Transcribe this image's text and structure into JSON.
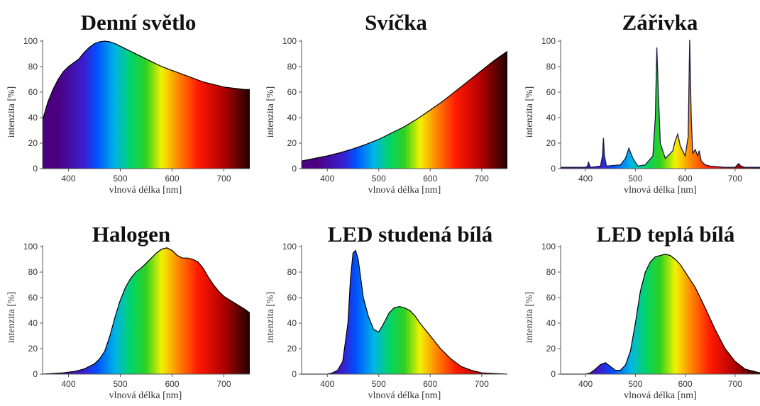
{
  "chart_data": [
    {
      "type": "area",
      "title": "Denní světlo",
      "xlabel": "vlnová délka [nm]",
      "ylabel": "intenzita [%]",
      "xlim": [
        350,
        750
      ],
      "ylim": [
        0,
        100
      ],
      "xticks": [
        400,
        500,
        600,
        700
      ],
      "yticks": [
        0,
        20,
        40,
        60,
        80,
        100
      ],
      "x": [
        350,
        360,
        370,
        380,
        390,
        400,
        410,
        420,
        430,
        440,
        450,
        460,
        470,
        480,
        490,
        500,
        520,
        540,
        560,
        580,
        600,
        620,
        640,
        660,
        680,
        700,
        720,
        740,
        750
      ],
      "y": [
        38,
        52,
        62,
        70,
        76,
        80,
        83,
        86,
        91,
        95,
        98,
        99.5,
        100,
        99.5,
        98,
        96,
        92,
        88,
        84,
        80,
        77,
        74,
        71,
        68,
        66,
        64,
        63,
        62,
        62
      ]
    },
    {
      "type": "area",
      "title": "Svíčka",
      "xlabel": "vlnová délka [nm]",
      "ylabel": "intenzita [%]",
      "xlim": [
        350,
        750
      ],
      "ylim": [
        0,
        100
      ],
      "xticks": [
        400,
        500,
        600,
        700
      ],
      "yticks": [
        0,
        20,
        40,
        60,
        80,
        100
      ],
      "x": [
        350,
        375,
        400,
        425,
        450,
        475,
        500,
        525,
        550,
        575,
        600,
        625,
        650,
        675,
        700,
        725,
        750
      ],
      "y": [
        6,
        8,
        10,
        12.5,
        15.5,
        19,
        23,
        28,
        33,
        39,
        46,
        53,
        61,
        69,
        77,
        85,
        92
      ]
    },
    {
      "type": "line",
      "title": "Zářivka",
      "xlabel": "vlnová délka [nm]",
      "ylabel": "intenzita [%]",
      "xlim": [
        350,
        750
      ],
      "ylim": [
        0,
        100
      ],
      "xticks": [
        400,
        500,
        600,
        700
      ],
      "yticks": [
        0,
        20,
        40,
        60,
        80,
        100
      ],
      "x": [
        350,
        380,
        400,
        404,
        406,
        410,
        430,
        434,
        436,
        438,
        442,
        470,
        480,
        487,
        495,
        505,
        520,
        535,
        540,
        543,
        546,
        550,
        560,
        575,
        580,
        585,
        590,
        600,
        606,
        609,
        612,
        615,
        620,
        625,
        628,
        632,
        640,
        650,
        680,
        700,
        707,
        712,
        720,
        750
      ],
      "y": [
        1,
        1,
        1,
        2,
        5,
        1,
        2,
        10,
        24,
        10,
        2,
        3,
        8,
        16,
        8,
        2,
        3,
        10,
        40,
        95,
        60,
        20,
        8,
        14,
        22,
        27,
        18,
        10,
        25,
        101,
        40,
        12,
        15,
        10,
        14,
        6,
        3,
        2,
        1,
        1,
        4,
        2,
        1,
        1
      ]
    },
    {
      "type": "area",
      "title": "Halogen",
      "xlabel": "vlnová délka [nm]",
      "ylabel": "intenzita [%]",
      "xlim": [
        350,
        750
      ],
      "ylim": [
        0,
        100
      ],
      "xticks": [
        400,
        500,
        600,
        700
      ],
      "yticks": [
        0,
        20,
        40,
        60,
        80,
        100
      ],
      "x": [
        350,
        370,
        390,
        410,
        430,
        450,
        460,
        470,
        480,
        490,
        500,
        510,
        520,
        530,
        540,
        550,
        560,
        570,
        580,
        590,
        600,
        610,
        620,
        630,
        640,
        650,
        660,
        670,
        680,
        690,
        700,
        720,
        740,
        750
      ],
      "y": [
        0,
        0.5,
        1,
        2,
        4,
        8,
        12,
        18,
        30,
        45,
        58,
        68,
        75,
        80,
        83,
        87,
        91,
        95,
        98,
        99,
        97,
        93,
        91,
        91,
        90,
        88,
        83,
        76,
        70,
        65,
        61,
        56,
        51,
        48
      ]
    },
    {
      "type": "area",
      "title": "LED studená bílá",
      "xlabel": "vlnová délka [nm]",
      "ylabel": "intenzita [%]",
      "xlim": [
        350,
        750
      ],
      "ylim": [
        0,
        100
      ],
      "xticks": [
        400,
        500,
        600,
        700
      ],
      "yticks": [
        0,
        20,
        40,
        60,
        80,
        100
      ],
      "x": [
        350,
        400,
        410,
        420,
        430,
        440,
        445,
        450,
        455,
        460,
        465,
        470,
        480,
        490,
        500,
        510,
        520,
        530,
        540,
        550,
        560,
        570,
        580,
        600,
        620,
        640,
        660,
        680,
        700,
        750
      ],
      "y": [
        0,
        0,
        1,
        3,
        10,
        40,
        75,
        95,
        97,
        90,
        75,
        60,
        45,
        35,
        33,
        40,
        48,
        52,
        53,
        52,
        50,
        46,
        40,
        30,
        20,
        12,
        6,
        3,
        1,
        0
      ]
    },
    {
      "type": "area",
      "title": "LED teplá bílá",
      "xlabel": "vlnová délka [nm]",
      "ylabel": "intenzita [%]",
      "xlim": [
        350,
        750
      ],
      "ylim": [
        0,
        100
      ],
      "xticks": [
        400,
        500,
        600,
        700
      ],
      "yticks": [
        0,
        20,
        40,
        60,
        80,
        100
      ],
      "x": [
        350,
        400,
        410,
        420,
        430,
        440,
        450,
        460,
        470,
        480,
        490,
        500,
        510,
        520,
        530,
        540,
        550,
        560,
        570,
        580,
        590,
        600,
        610,
        620,
        640,
        660,
        680,
        700,
        720,
        750
      ],
      "y": [
        0,
        0,
        1,
        4,
        7.5,
        9,
        6,
        3,
        3,
        7,
        18,
        40,
        65,
        80,
        88,
        92,
        93,
        94,
        93,
        90,
        86,
        80,
        74,
        68,
        52,
        35,
        20,
        10,
        4,
        1
      ]
    }
  ],
  "colors": {
    "spectrum": [
      "#4b0082",
      "#3a1fd0",
      "#0050ff",
      "#00b4e6",
      "#00d46a",
      "#30d020",
      "#f2f200",
      "#ff8c00",
      "#ff1a00",
      "#b00000",
      "#200000"
    ],
    "fluorescent_line": "#1a1a40"
  }
}
